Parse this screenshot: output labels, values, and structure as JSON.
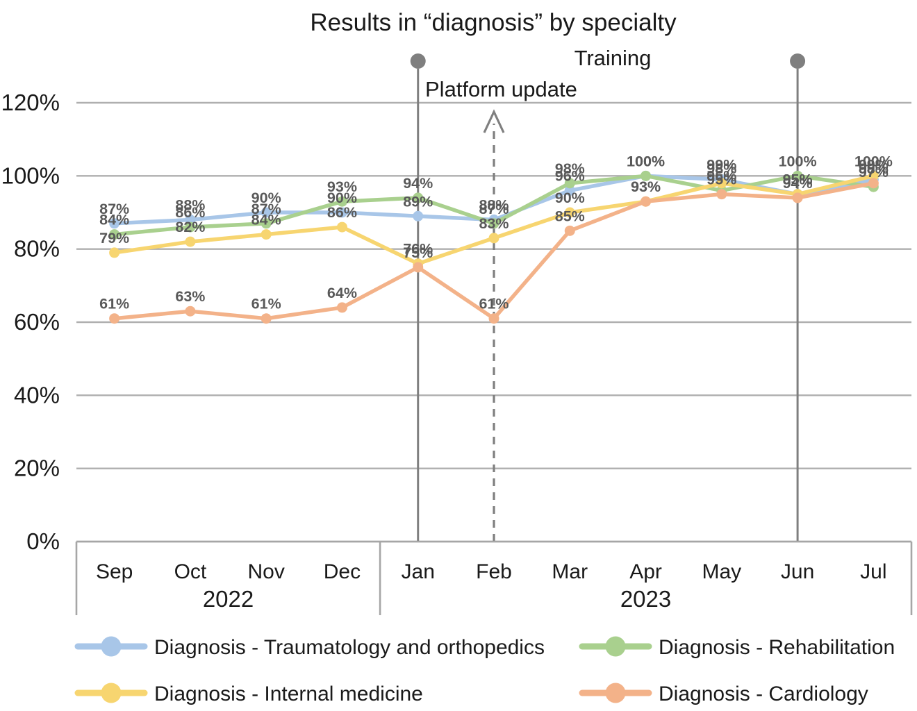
{
  "title": "Results in “diagnosis” by specialty",
  "annotations": {
    "platform_update": {
      "label": "Platform update",
      "month": "Jan"
    },
    "training": {
      "label": "Training",
      "month": "Jun"
    },
    "arrow": {
      "month": "Feb"
    }
  },
  "colors": {
    "traumatology": "#A8C6E8",
    "rehabilitation": "#A9D08E",
    "internal_medicine": "#F7D570",
    "cardiology": "#F3B289",
    "gridline": "#AFAFAF",
    "axis": "#A6A6A6",
    "annotation_gray": "#7F7F7F",
    "data_label": "#595959",
    "text": "#1A1A1A"
  },
  "chart_data": {
    "type": "line",
    "title": "Results in “diagnosis” by specialty",
    "categories": [
      "Sep",
      "Oct",
      "Nov",
      "Dec",
      "Jan",
      "Feb",
      "Mar",
      "Apr",
      "May",
      "Jun",
      "Jul"
    ],
    "year_groups": [
      {
        "label": "2022",
        "span": 4
      },
      {
        "label": "2023",
        "span": 7
      }
    ],
    "y_ticks": [
      "0%",
      "20%",
      "40%",
      "60%",
      "80%",
      "100%",
      "120%"
    ],
    "ylim": [
      0,
      120
    ],
    "grid": true,
    "legend_position": "bottom",
    "data_labels": true,
    "series": [
      {
        "name": "Diagnosis - Traumatology and orthopedics",
        "color": "#A8C6E8",
        "values": [
          87,
          88,
          90,
          90,
          89,
          88,
          96,
          100,
          99,
          95,
          99
        ]
      },
      {
        "name": "Diagnosis - Rehabilitation",
        "color": "#A9D08E",
        "values": [
          84,
          86,
          87,
          93,
          94,
          87,
          98,
          100,
          96,
          100,
          97
        ]
      },
      {
        "name": "Diagnosis - Internal medicine",
        "color": "#F7D570",
        "values": [
          79,
          82,
          84,
          86,
          76,
          83,
          90,
          93,
          98,
          95,
          100
        ]
      },
      {
        "name": "Diagnosis - Cardiology",
        "color": "#F3B289",
        "values": [
          61,
          63,
          61,
          64,
          75,
          61,
          85,
          93,
          95,
          94,
          98
        ]
      }
    ]
  }
}
